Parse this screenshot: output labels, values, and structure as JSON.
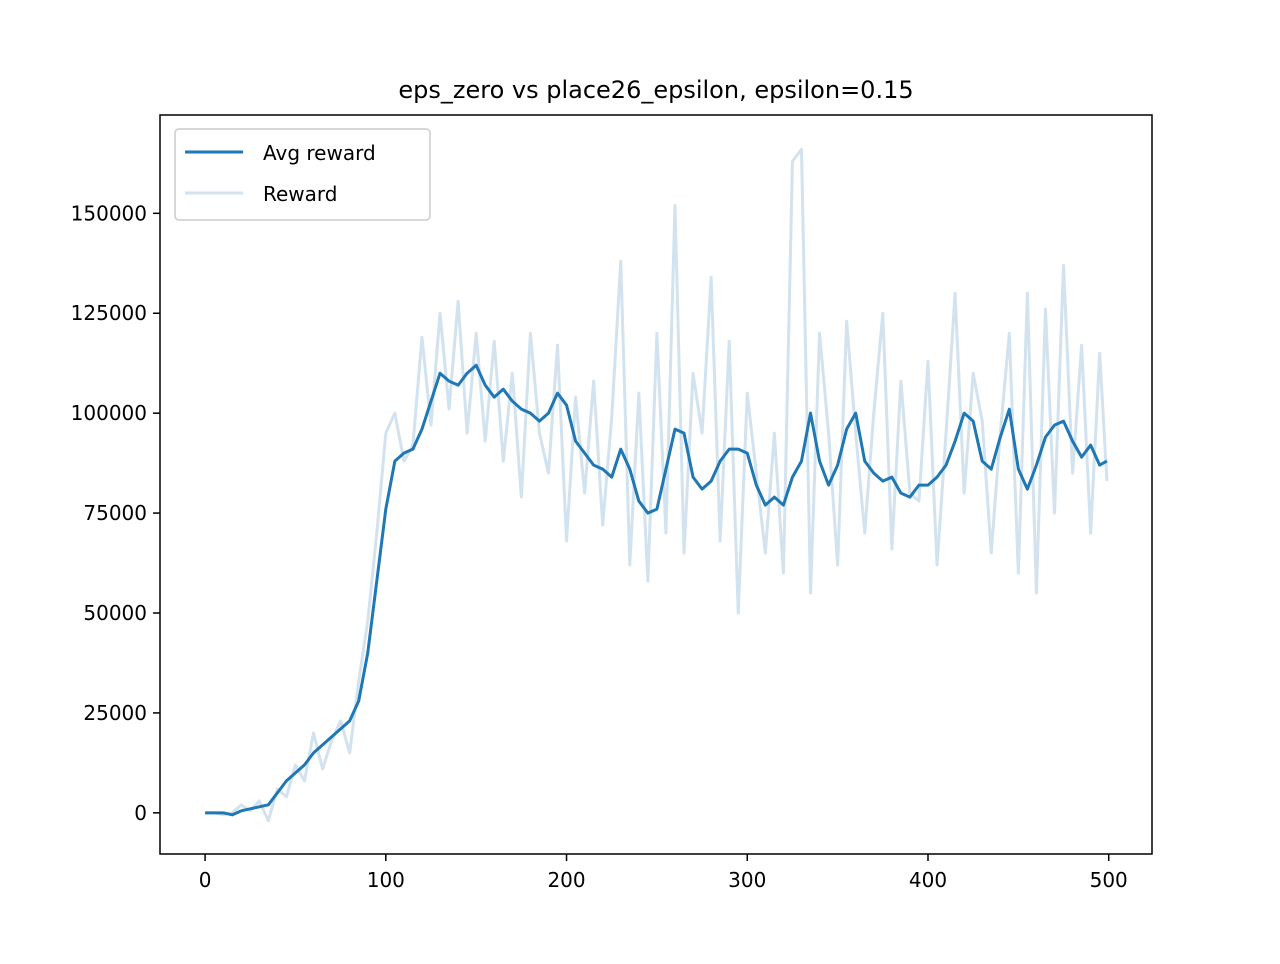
{
  "chart_data": {
    "type": "line",
    "title": "eps_zero vs place26_epsilon, epsilon=0.15",
    "x": [
      0,
      5,
      10,
      15,
      20,
      25,
      30,
      35,
      40,
      45,
      50,
      55,
      60,
      65,
      70,
      75,
      80,
      85,
      90,
      95,
      100,
      105,
      110,
      115,
      120,
      125,
      130,
      135,
      140,
      145,
      150,
      155,
      160,
      165,
      170,
      175,
      180,
      185,
      190,
      195,
      200,
      205,
      210,
      215,
      220,
      225,
      230,
      235,
      240,
      245,
      250,
      255,
      260,
      265,
      270,
      275,
      280,
      285,
      290,
      295,
      300,
      305,
      310,
      315,
      320,
      325,
      330,
      335,
      340,
      345,
      350,
      355,
      360,
      365,
      370,
      375,
      380,
      385,
      390,
      395,
      400,
      405,
      410,
      415,
      420,
      425,
      430,
      435,
      440,
      445,
      450,
      455,
      460,
      465,
      470,
      475,
      480,
      485,
      490,
      495,
      499
    ],
    "series": [
      {
        "name": "Reward",
        "color": "#d2e3ef",
        "values": [
          0,
          0,
          -500,
          0,
          2000,
          500,
          3000,
          -2000,
          6000,
          4000,
          12000,
          8000,
          20000,
          11000,
          18000,
          23000,
          15000,
          33000,
          48000,
          70000,
          95000,
          100000,
          88000,
          92000,
          119000,
          97000,
          125000,
          101000,
          128000,
          95000,
          120000,
          93000,
          118000,
          88000,
          110000,
          79000,
          120000,
          95000,
          85000,
          117000,
          68000,
          104000,
          80000,
          108000,
          72000,
          99000,
          138000,
          62000,
          105000,
          58000,
          120000,
          70000,
          152000,
          65000,
          110000,
          95000,
          134000,
          68000,
          118000,
          50000,
          105000,
          85000,
          65000,
          95000,
          60000,
          163000,
          166000,
          55000,
          120000,
          95000,
          62000,
          123000,
          95000,
          70000,
          100000,
          125000,
          66000,
          108000,
          80000,
          78000,
          113000,
          62000,
          95000,
          130000,
          80000,
          110000,
          98000,
          65000,
          95000,
          120000,
          60000,
          130000,
          55000,
          126000,
          75000,
          137000,
          85000,
          117000,
          70000,
          115000,
          83000
        ]
      },
      {
        "name": "Avg reward",
        "color": "#1f77b4",
        "values": [
          0,
          0,
          0,
          -500,
          500,
          1000,
          1500,
          2000,
          5000,
          8000,
          10000,
          12000,
          15000,
          17000,
          19000,
          21000,
          23000,
          28000,
          40000,
          58000,
          76000,
          88000,
          90000,
          91000,
          96000,
          103000,
          110000,
          108000,
          107000,
          110000,
          112000,
          107000,
          104000,
          106000,
          103000,
          101000,
          100000,
          98000,
          100000,
          105000,
          102000,
          93000,
          90000,
          87000,
          86000,
          84000,
          91000,
          86000,
          78000,
          75000,
          76000,
          86000,
          96000,
          95000,
          84000,
          81000,
          83000,
          88000,
          91000,
          91000,
          90000,
          82000,
          77000,
          79000,
          77000,
          84000,
          88000,
          100000,
          88000,
          82000,
          87000,
          96000,
          100000,
          88000,
          85000,
          83000,
          84000,
          80000,
          79000,
          82000,
          82000,
          84000,
          87000,
          93000,
          100000,
          98000,
          88000,
          86000,
          94000,
          101000,
          86000,
          81000,
          87000,
          94000,
          97000,
          98000,
          93000,
          89000,
          92000,
          87000,
          88000
        ]
      }
    ],
    "xlim": [
      -24.95,
      523.95
    ],
    "ylim": [
      -10300,
      174600
    ],
    "xticks": [
      0,
      100,
      200,
      300,
      400,
      500
    ],
    "yticks": [
      0,
      25000,
      50000,
      75000,
      100000,
      125000,
      150000
    ],
    "legend": "upper left"
  }
}
